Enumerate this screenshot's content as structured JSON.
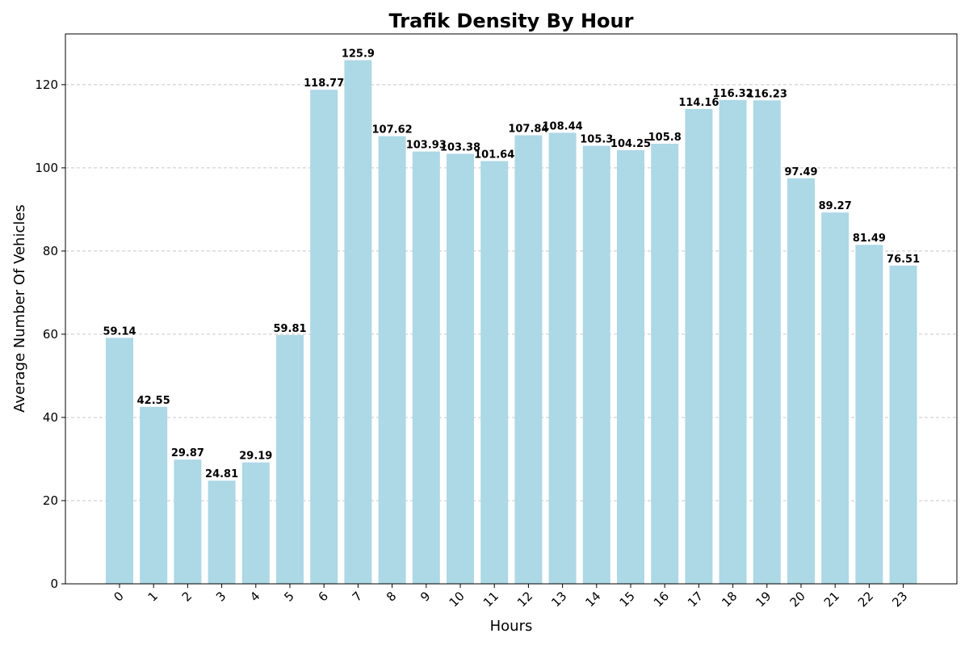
{
  "chart_data": {
    "type": "bar",
    "title": "Trafik Density By Hour",
    "xlabel": "Hours",
    "ylabel": "Average Number Of Vehicles",
    "categories": [
      "0",
      "1",
      "2",
      "3",
      "4",
      "5",
      "6",
      "7",
      "8",
      "9",
      "10",
      "11",
      "12",
      "13",
      "14",
      "15",
      "16",
      "17",
      "18",
      "19",
      "20",
      "21",
      "22",
      "23"
    ],
    "values": [
      59.14,
      42.55,
      29.87,
      24.81,
      29.19,
      59.81,
      118.77,
      125.9,
      107.62,
      103.93,
      103.38,
      101.64,
      107.84,
      108.44,
      105.3,
      104.25,
      105.8,
      114.16,
      116.32,
      116.23,
      97.49,
      89.27,
      81.49,
      76.51
    ],
    "value_labels": [
      "59.14",
      "42.55",
      "29.87",
      "24.81",
      "29.19",
      "59.81",
      "118.77",
      "125.9",
      "107.62",
      "103.93",
      "103.38",
      "101.64",
      "107.84",
      "108.44",
      "105.3",
      "104.25",
      "105.8",
      "114.16",
      "116.32",
      "116.23",
      "97.49",
      "89.27",
      "81.49",
      "76.51"
    ],
    "ylim": [
      0,
      132.2
    ],
    "yticks": [
      0,
      20,
      40,
      60,
      80,
      100,
      120
    ],
    "grid": "y-dashed",
    "bar_color": "#add8e6",
    "axis_color": "#000000",
    "grid_color": "#c8c8c8"
  }
}
